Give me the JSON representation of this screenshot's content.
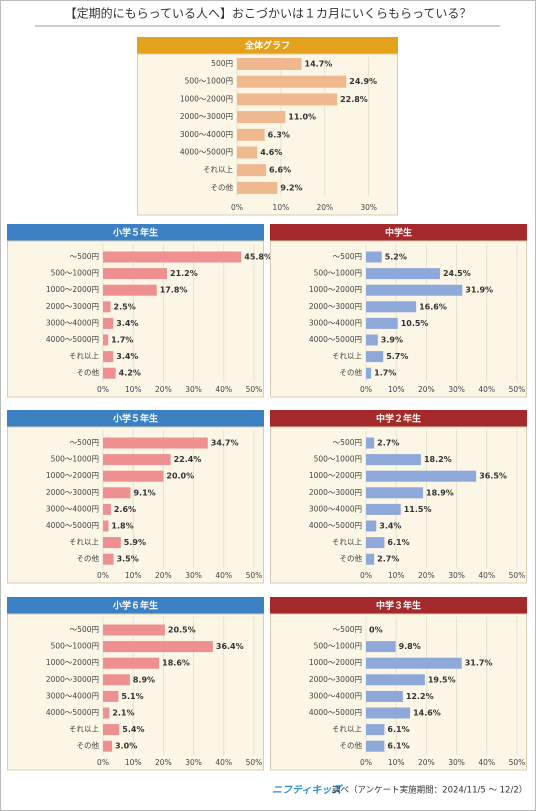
{
  "title": "【定期的にもらっている人へ】おこづかいは１カ月にいくらもらっている？",
  "footer": {
    "brand": "ニフティキッズ",
    "note": "調べ（アンケート実施期間：2024/11/5 ～ 12/2）"
  },
  "chart_data": [
    {
      "type": "bar",
      "title": "全体グラフ",
      "header_color": "#e3a11c",
      "color": "#efb88e",
      "categories": [
        "500円",
        "500～1000円",
        "1000～2000円",
        "2000～3000円",
        "3000～4000円",
        "4000～5000円",
        "それ以上",
        "その他"
      ],
      "values": [
        14.7,
        24.9,
        22.8,
        11.0,
        6.3,
        4.6,
        6.6,
        9.2
      ],
      "value_labels": [
        "14.7%",
        "24.9%",
        "22.8%",
        "11.0%",
        "6.3%",
        "4.6%",
        "6.6%",
        "9.2%"
      ],
      "xlim": [
        0,
        36
      ],
      "xticks": [
        {
          "value": 0,
          "label": "0%"
        },
        {
          "value": 10,
          "label": "10%"
        },
        {
          "value": 20,
          "label": "20%"
        },
        {
          "value": 30,
          "label": "30%"
        }
      ],
      "grid": true
    },
    {
      "type": "bar",
      "title": "小学５年生",
      "header_color": "#3b80c3",
      "color": "#ee9090",
      "categories": [
        "～500円",
        "500～1000円",
        "1000～2000円",
        "2000～3000円",
        "3000～4000円",
        "4000～5000円",
        "それ以上",
        "その他"
      ],
      "values": [
        45.8,
        21.2,
        17.8,
        2.5,
        3.4,
        1.7,
        3.4,
        4.2
      ],
      "value_labels": [
        "45.8%",
        "21.2%",
        "17.8%",
        "2.5%",
        "3.4%",
        "1.7%",
        "3.4%",
        "4.2%"
      ],
      "xlim": [
        0,
        53
      ],
      "xticks": [
        {
          "value": 0,
          "label": "0%"
        },
        {
          "value": 10,
          "label": "10%"
        },
        {
          "value": 20,
          "label": "20%"
        },
        {
          "value": 30,
          "label": "30%"
        },
        {
          "value": 40,
          "label": "40%"
        },
        {
          "value": 50,
          "label": "50%"
        }
      ],
      "grid": true
    },
    {
      "type": "bar",
      "title": "中学生",
      "header_color": "#a3292b",
      "color": "#8ea9d9",
      "categories": [
        "～500円",
        "500～1000円",
        "1000～2000円",
        "2000～3000円",
        "3000～4000円",
        "4000～5000円",
        "それ以上",
        "その他"
      ],
      "values": [
        5.2,
        24.5,
        31.9,
        16.6,
        10.5,
        3.9,
        5.7,
        1.7
      ],
      "value_labels": [
        "5.2%",
        "24.5%",
        "31.9%",
        "16.6%",
        "10.5%",
        "3.9%",
        "5.7%",
        "1.7%"
      ],
      "xlim": [
        0,
        53
      ],
      "xticks": [
        {
          "value": 0,
          "label": "0%"
        },
        {
          "value": 10,
          "label": "10%"
        },
        {
          "value": 20,
          "label": "20%"
        },
        {
          "value": 30,
          "label": "30%"
        },
        {
          "value": 40,
          "label": "40%"
        },
        {
          "value": 50,
          "label": "50%"
        }
      ],
      "grid": true
    },
    {
      "type": "bar",
      "title": "小学５年生",
      "header_color": "#3b80c3",
      "color": "#ee9090",
      "categories": [
        "～500円",
        "500～1000円",
        "1000～2000円",
        "2000～3000円",
        "3000～4000円",
        "4000～5000円",
        "それ以上",
        "その他"
      ],
      "values": [
        34.7,
        22.4,
        20.0,
        9.1,
        2.6,
        1.8,
        5.9,
        3.5
      ],
      "value_labels": [
        "34.7%",
        "22.4%",
        "20.0%",
        "9.1%",
        "2.6%",
        "1.8%",
        "5.9%",
        "3.5%"
      ],
      "xlim": [
        0,
        53
      ],
      "xticks": [
        {
          "value": 0,
          "label": "0%"
        },
        {
          "value": 10,
          "label": "10%"
        },
        {
          "value": 20,
          "label": "20%"
        },
        {
          "value": 30,
          "label": "30%"
        },
        {
          "value": 40,
          "label": "40%"
        },
        {
          "value": 50,
          "label": "50%"
        }
      ],
      "grid": true
    },
    {
      "type": "bar",
      "title": "中学２年生",
      "header_color": "#a3292b",
      "color": "#8ea9d9",
      "categories": [
        "～500円",
        "500～1000円",
        "1000～2000円",
        "2000～3000円",
        "3000～4000円",
        "4000～5000円",
        "それ以上",
        "その他"
      ],
      "values": [
        2.7,
        18.2,
        36.5,
        18.9,
        11.5,
        3.4,
        6.1,
        2.7
      ],
      "value_labels": [
        "2.7%",
        "18.2%",
        "36.5%",
        "18.9%",
        "11.5%",
        "3.4%",
        "6.1%",
        "2.7%"
      ],
      "xlim": [
        0,
        53
      ],
      "xticks": [
        {
          "value": 0,
          "label": "0%"
        },
        {
          "value": 10,
          "label": "10%"
        },
        {
          "value": 20,
          "label": "20%"
        },
        {
          "value": 30,
          "label": "30%"
        },
        {
          "value": 40,
          "label": "40%"
        },
        {
          "value": 50,
          "label": "50%"
        }
      ],
      "grid": true
    },
    {
      "type": "bar",
      "title": "小学６年生",
      "header_color": "#3b80c3",
      "color": "#ee9090",
      "categories": [
        "～500円",
        "500～1000円",
        "1000～2000円",
        "2000～3000円",
        "3000～4000円",
        "4000～5000円",
        "それ以上",
        "その他"
      ],
      "values": [
        20.5,
        36.4,
        18.6,
        8.9,
        5.1,
        2.1,
        5.4,
        3.0
      ],
      "value_labels": [
        "20.5%",
        "36.4%",
        "18.6%",
        "8.9%",
        "5.1%",
        "2.1%",
        "5.4%",
        "3.0%"
      ],
      "xlim": [
        0,
        53
      ],
      "xticks": [
        {
          "value": 0,
          "label": "0%"
        },
        {
          "value": 10,
          "label": "10%"
        },
        {
          "value": 20,
          "label": "20%"
        },
        {
          "value": 30,
          "label": "30%"
        },
        {
          "value": 40,
          "label": "40%"
        },
        {
          "value": 50,
          "label": "50%"
        }
      ],
      "grid": true
    },
    {
      "type": "bar",
      "title": "中学３年生",
      "header_color": "#a3292b",
      "color": "#8ea9d9",
      "categories": [
        "～500円",
        "500～1000円",
        "1000～2000円",
        "2000～3000円",
        "3000～4000円",
        "4000～5000円",
        "それ以上",
        "その他"
      ],
      "values": [
        0,
        9.8,
        31.7,
        19.5,
        12.2,
        14.6,
        6.1,
        6.1
      ],
      "value_labels": [
        "0%",
        "9.8%",
        "31.7%",
        "19.5%",
        "12.2%",
        "14.6%",
        "6.1%",
        "6.1%"
      ],
      "xlim": [
        0,
        53
      ],
      "xticks": [
        {
          "value": 0,
          "label": "0%"
        },
        {
          "value": 10,
          "label": "10%"
        },
        {
          "value": 20,
          "label": "20%"
        },
        {
          "value": 30,
          "label": "30%"
        },
        {
          "value": 40,
          "label": "40%"
        },
        {
          "value": 50,
          "label": "50%"
        }
      ],
      "grid": true
    }
  ]
}
